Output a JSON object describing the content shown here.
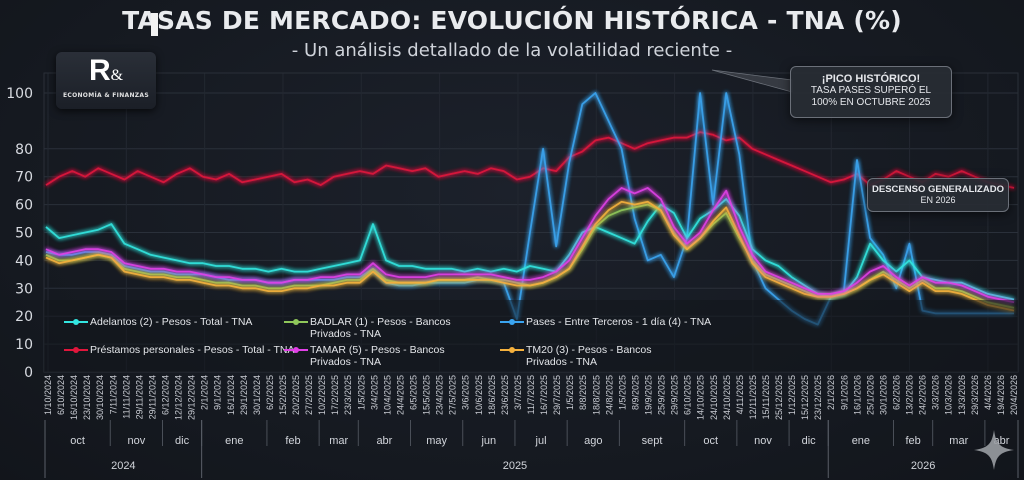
{
  "header": {
    "title": "TASAS DE MERCADO: EVOLUCIÓN HISTÓRICA - TNA (%)",
    "subtitle": "- Un análisis detallado de la volatilidad reciente -"
  },
  "logo": {
    "mark": "R",
    "ampersand": "&",
    "tagline": "ECONOMÍA & FINANZAS"
  },
  "annotations": {
    "peak": {
      "heading": "¡PICO HISTÓRICO!",
      "line1": "TASA PASES SUPERÓ EL",
      "line2": "100% EN OCTUBRE 2025"
    },
    "decline": {
      "heading": "DESCENSO GENERALIZADO",
      "line1": "EN 2026"
    }
  },
  "colors": {
    "background": "#161a22",
    "adelantos": "#33e6e0",
    "badlar": "#8fc75a",
    "pases": "#3aa4f0",
    "prestamos": "#e0163c",
    "tamar": "#e040e6",
    "tm20": "#f5b13d"
  },
  "chart_data": {
    "type": "line",
    "title": "TASAS DE MERCADO: EVOLUCIÓN HISTÓRICA - TNA (%)",
    "subtitle": "- Un análisis detallado de la volatilidad reciente -",
    "xlabel": "",
    "ylabel": "",
    "ylim": [
      0,
      100
    ],
    "yticks": [
      0,
      10,
      20,
      30,
      40,
      50,
      60,
      70,
      80,
      100
    ],
    "grid": true,
    "legend_position": "bottom-left",
    "x_tick_labels": [
      "1/10/2024",
      "6/10/2024",
      "16/10/2024",
      "23/10/2024",
      "30/10/2024",
      "7/11/2024",
      "11/11/2024",
      "29/11/2024",
      "29/11/2024",
      "6/12/2024",
      "12/12/2024",
      "29/12/2024",
      "2/1/2024",
      "9/1/2024",
      "16/1/2024",
      "29/1/2024",
      "30/1/2024",
      "6/2/2025",
      "15/2/2025",
      "20/2/2025",
      "27/2/2025",
      "10/2/2025",
      "17/2/2025",
      "23/3/2025",
      "1/5/2025",
      "3/4/2025",
      "10/4/2025",
      "24/4/2025",
      "6/5/2025",
      "15/5/2025",
      "23/4/2025",
      "27/5/2025",
      "3/6/2025",
      "10/6/2025",
      "18/6/2025",
      "23/6/2025",
      "3/7/2025",
      "11/7/2025",
      "16/7/2025",
      "29/7/2025",
      "1/5/2025",
      "8/8/2025",
      "18/8/2025",
      "24/8/2025",
      "1/5/2025",
      "8/9/2025",
      "19/9/2025",
      "25/9/2025",
      "29/9/2025",
      "6/10/2025",
      "14/10/2025",
      "24/10/2025",
      "24/10/2025",
      "4/11/2025",
      "12/11/2025",
      "15/11/2025",
      "25/12/2025",
      "1/12/2025",
      "15/12/2025",
      "23/12/2025",
      "2/1/2026",
      "9/1/2026",
      "16/1/2026",
      "25/1/2026",
      "30/1/2026",
      "6/2/2026",
      "13/2/2026",
      "24/2/2026",
      "3/3/2026",
      "10/3/2026",
      "13/3/2026",
      "29/3/2026",
      "4/4/2026",
      "19/4/2026",
      "20/4/2026"
    ],
    "month_labels": [
      {
        "label": "oct",
        "start": 0,
        "end": 5
      },
      {
        "label": "nov",
        "start": 5,
        "end": 9
      },
      {
        "label": "dic",
        "start": 9,
        "end": 12
      },
      {
        "label": "ene",
        "start": 12,
        "end": 17
      },
      {
        "label": "feb",
        "start": 17,
        "end": 21
      },
      {
        "label": "mar",
        "start": 21,
        "end": 24
      },
      {
        "label": "abr",
        "start": 24,
        "end": 28
      },
      {
        "label": "may",
        "start": 28,
        "end": 32
      },
      {
        "label": "jun",
        "start": 32,
        "end": 36
      },
      {
        "label": "jul",
        "start": 36,
        "end": 40
      },
      {
        "label": "ago",
        "start": 40,
        "end": 44
      },
      {
        "label": "sept",
        "start": 44,
        "end": 49
      },
      {
        "label": "oct",
        "start": 49,
        "end": 53
      },
      {
        "label": "nov",
        "start": 53,
        "end": 57
      },
      {
        "label": "dic",
        "start": 57,
        "end": 60
      },
      {
        "label": "ene",
        "start": 60,
        "end": 65
      },
      {
        "label": "feb",
        "start": 65,
        "end": 68
      },
      {
        "label": "mar",
        "start": 68,
        "end": 72
      },
      {
        "label": "abr",
        "start": 72,
        "end": 75
      }
    ],
    "year_labels": [
      {
        "label": "2024",
        "start": 0,
        "end": 12
      },
      {
        "label": "2025",
        "start": 12,
        "end": 60
      },
      {
        "label": "2026",
        "start": 60,
        "end": 75
      }
    ],
    "series": [
      {
        "name": "Adelantos (2) - Pesos - Total - TNA",
        "color": "#33e6e0",
        "values": [
          52,
          48,
          49,
          50,
          51,
          53,
          46,
          44,
          42,
          41,
          40,
          39,
          39,
          38,
          38,
          37,
          37,
          36,
          37,
          36,
          36,
          37,
          38,
          39,
          40,
          53,
          40,
          38,
          38,
          37,
          37,
          37,
          36,
          37,
          36,
          37,
          36,
          38,
          37,
          36,
          42,
          50,
          52,
          50,
          48,
          46,
          54,
          60,
          57,
          48,
          55,
          58,
          62,
          56,
          44,
          40,
          38,
          34,
          31,
          28,
          27,
          28,
          34,
          46,
          40,
          36,
          40,
          34,
          33,
          32,
          32,
          30,
          28,
          27,
          26
        ]
      },
      {
        "name": "BADLAR (1) - Pesos - Bancos Privados - TNA",
        "color": "#8fc75a",
        "values": [
          42,
          40,
          40,
          41,
          42,
          41,
          37,
          36,
          35,
          35,
          34,
          34,
          33,
          32,
          32,
          31,
          31,
          30,
          30,
          31,
          31,
          31,
          32,
          33,
          33,
          37,
          33,
          32,
          32,
          32,
          33,
          33,
          33,
          34,
          33,
          33,
          32,
          31,
          32,
          34,
          37,
          44,
          52,
          56,
          58,
          59,
          60,
          58,
          50,
          44,
          48,
          53,
          57,
          48,
          40,
          35,
          33,
          31,
          29,
          27,
          27,
          28,
          30,
          33,
          36,
          33,
          30,
          33,
          30,
          30,
          29,
          27,
          25,
          24,
          23
        ]
      },
      {
        "name": "Pases - Entre Terceros - 1 día (4) - TNA",
        "color": "#3aa4f0",
        "values": [
          43,
          42,
          42,
          43,
          43,
          42,
          38,
          37,
          36,
          36,
          35,
          35,
          35,
          34,
          33,
          33,
          33,
          32,
          32,
          33,
          33,
          33,
          33,
          34,
          34,
          37,
          32,
          31,
          31,
          32,
          32,
          32,
          32,
          33,
          33,
          32,
          19,
          50,
          80,
          45,
          75,
          96,
          100,
          90,
          80,
          55,
          40,
          42,
          34,
          48,
          100,
          60,
          100,
          78,
          40,
          30,
          26,
          22,
          19,
          17,
          27,
          29,
          76,
          48,
          42,
          30,
          46,
          22,
          21,
          21,
          21,
          21,
          21,
          21,
          21
        ]
      },
      {
        "name": "Préstamos personales - Pesos - Total - TNA",
        "color": "#e0163c",
        "values": [
          67,
          70,
          72,
          70,
          73,
          71,
          69,
          72,
          70,
          68,
          71,
          73,
          70,
          69,
          71,
          68,
          69,
          70,
          71,
          68,
          69,
          67,
          70,
          71,
          72,
          71,
          74,
          73,
          72,
          73,
          70,
          71,
          72,
          71,
          73,
          72,
          69,
          70,
          73,
          72,
          77,
          79,
          83,
          84,
          82,
          80,
          82,
          83,
          84,
          84,
          86,
          85,
          83,
          84,
          80,
          78,
          76,
          74,
          72,
          70,
          68,
          69,
          71,
          67,
          69,
          72,
          70,
          68,
          71,
          70,
          72,
          70,
          68,
          67,
          66
        ]
      },
      {
        "name": "TAMAR (5) - Pesos - Bancos Privados - TNA",
        "color": "#e040e6",
        "values": [
          44,
          42,
          43,
          44,
          44,
          43,
          39,
          38,
          37,
          37,
          36,
          36,
          35,
          34,
          34,
          33,
          33,
          32,
          32,
          33,
          33,
          34,
          34,
          35,
          35,
          39,
          35,
          34,
          34,
          34,
          35,
          35,
          35,
          35,
          35,
          34,
          33,
          33,
          34,
          36,
          40,
          48,
          56,
          62,
          66,
          64,
          66,
          62,
          52,
          46,
          50,
          58,
          65,
          52,
          42,
          36,
          34,
          32,
          30,
          28,
          28,
          29,
          32,
          36,
          38,
          34,
          31,
          34,
          32,
          32,
          31,
          29,
          27,
          26,
          25
        ]
      },
      {
        "name": "TM20 (3) - Pesos - Bancos Privados - TNA",
        "color": "#f5b13d",
        "values": [
          41,
          39,
          40,
          41,
          42,
          41,
          36,
          35,
          34,
          34,
          33,
          33,
          32,
          31,
          31,
          30,
          30,
          29,
          29,
          30,
          30,
          31,
          31,
          32,
          32,
          36,
          32,
          32,
          32,
          32,
          33,
          33,
          33,
          33,
          33,
          32,
          31,
          31,
          32,
          34,
          37,
          45,
          53,
          58,
          61,
          60,
          61,
          58,
          49,
          44,
          48,
          54,
          59,
          49,
          39,
          34,
          32,
          30,
          28,
          27,
          27,
          28,
          30,
          33,
          35,
          32,
          29,
          32,
          29,
          29,
          28,
          26,
          24,
          23,
          22
        ]
      }
    ]
  }
}
